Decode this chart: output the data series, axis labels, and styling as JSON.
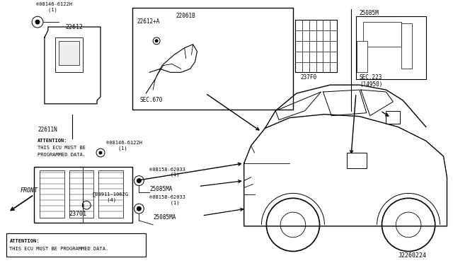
{
  "background_color": "#ffffff",
  "line_color": "#000000",
  "figsize": [
    6.4,
    3.72
  ],
  "dpi": 100,
  "diagram_num": "J2260224",
  "labels": {
    "part_22612": "22612",
    "part_22611N": "22611N",
    "part_23701": "23701",
    "sec670": "SEC.670",
    "part_237F0": "237F0",
    "part_25085M": "25085M",
    "sec223": "SEC.223\n(14950)",
    "part_22612A": "22612+A",
    "part_22061B": "22061B",
    "attention1_line1": "ATTENTION:",
    "attention1_line2": "THIS ECU MUST BE",
    "attention1_line3": "PROGRAMMED DATA.",
    "attention2_line1": "ATTENTION:",
    "attention2_line2": "THIS ECU MUST BE PROGRAMMED DATA.",
    "front": "FRONT",
    "bolt_08146": "®08146-6122H\n    (1)",
    "bolt_08911": "ⓝ08911-1062G\n     (4)",
    "bolt_08158_1": "®08158-62033\n       (1)",
    "bolt_08158_2": "®08158-62033\n       (1)",
    "part_25085MA_1": "25085MA",
    "part_25085MA_2": "25085MA"
  }
}
